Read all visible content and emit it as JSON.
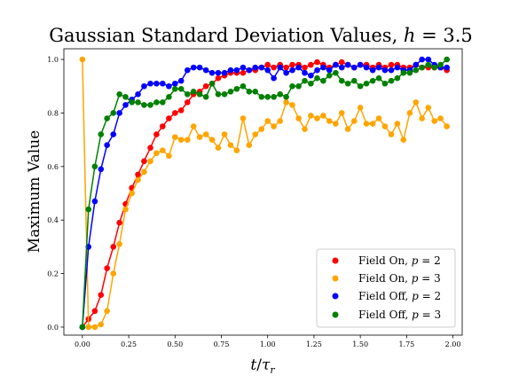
{
  "chart_data": {
    "type": "scatter",
    "title": "Gaussian Standard Deviation Values, h = 3.5",
    "title_main": "Gaussian Standard Deviation Values, ",
    "title_var": "h",
    "title_rest": " = 3.5",
    "xlabel": "t/τr",
    "xlabel_parts": [
      "t",
      "/",
      "τ",
      "r"
    ],
    "ylabel": "Maximum Value",
    "xlim": [
      -0.1,
      2.05
    ],
    "ylim": [
      -0.03,
      1.04
    ],
    "xticks": [
      0.0,
      0.25,
      0.5,
      0.75,
      1.0,
      1.25,
      1.5,
      1.75,
      2.0
    ],
    "xtick_labels": [
      "0.00",
      "0.25",
      "0.50",
      "0.75",
      "1.00",
      "1.25",
      "1.50",
      "1.75",
      "2.00"
    ],
    "yticks": [
      0.0,
      0.2,
      0.4,
      0.6,
      0.8,
      1.0
    ],
    "ytick_labels": [
      "0.0",
      "0.2",
      "0.4",
      "0.6",
      "0.8",
      "1.0"
    ],
    "grid": false,
    "legend_placement": "bottom-right",
    "series": [
      {
        "name": "Field On, p = 2",
        "legend_main": "Field On, ",
        "legend_var": "p",
        "legend_rest": " = 2",
        "color": "#ff0000",
        "x": [
          0.0,
          0.033,
          0.067,
          0.1,
          0.133,
          0.167,
          0.2,
          0.233,
          0.267,
          0.3,
          0.333,
          0.367,
          0.4,
          0.433,
          0.467,
          0.5,
          0.533,
          0.567,
          0.6,
          0.633,
          0.667,
          0.7,
          0.733,
          0.767,
          0.8,
          0.833,
          0.867,
          0.9,
          0.933,
          0.967,
          1.0,
          1.033,
          1.067,
          1.1,
          1.133,
          1.167,
          1.2,
          1.233,
          1.267,
          1.3,
          1.333,
          1.367,
          1.4,
          1.433,
          1.467,
          1.5,
          1.533,
          1.567,
          1.6,
          1.633,
          1.667,
          1.7,
          1.733,
          1.767,
          1.8,
          1.833,
          1.867,
          1.9,
          1.933,
          1.967
        ],
        "y": [
          0.0,
          0.03,
          0.06,
          0.12,
          0.22,
          0.3,
          0.39,
          0.46,
          0.52,
          0.57,
          0.62,
          0.67,
          0.72,
          0.75,
          0.78,
          0.8,
          0.81,
          0.84,
          0.87,
          0.88,
          0.9,
          0.91,
          0.93,
          0.94,
          0.95,
          0.95,
          0.95,
          0.96,
          0.96,
          0.97,
          0.98,
          0.97,
          0.98,
          0.97,
          0.98,
          0.98,
          0.97,
          0.98,
          0.99,
          0.98,
          0.97,
          0.98,
          0.99,
          0.98,
          0.97,
          0.98,
          0.98,
          0.97,
          0.98,
          0.97,
          0.98,
          0.98,
          0.97,
          0.97,
          0.98,
          0.97,
          0.97,
          0.97,
          0.97,
          0.96
        ]
      },
      {
        "name": "Field On, p = 3",
        "legend_main": "Field On, ",
        "legend_var": "p",
        "legend_rest": " = 3",
        "color": "#ffa500",
        "x": [
          0.0,
          0.033,
          0.067,
          0.1,
          0.133,
          0.167,
          0.2,
          0.233,
          0.267,
          0.3,
          0.333,
          0.367,
          0.4,
          0.433,
          0.467,
          0.5,
          0.533,
          0.567,
          0.6,
          0.633,
          0.667,
          0.7,
          0.733,
          0.767,
          0.8,
          0.833,
          0.867,
          0.9,
          0.933,
          0.967,
          1.0,
          1.033,
          1.067,
          1.1,
          1.133,
          1.167,
          1.2,
          1.233,
          1.267,
          1.3,
          1.333,
          1.367,
          1.4,
          1.433,
          1.467,
          1.5,
          1.533,
          1.567,
          1.6,
          1.633,
          1.667,
          1.7,
          1.733,
          1.767,
          1.8,
          1.833,
          1.867,
          1.9,
          1.933,
          1.967
        ],
        "y": [
          1.0,
          0.0,
          0.0,
          0.01,
          0.06,
          0.2,
          0.31,
          0.44,
          0.5,
          0.55,
          0.58,
          0.62,
          0.65,
          0.66,
          0.64,
          0.71,
          0.7,
          0.7,
          0.75,
          0.71,
          0.72,
          0.7,
          0.67,
          0.72,
          0.68,
          0.66,
          0.78,
          0.68,
          0.72,
          0.74,
          0.77,
          0.75,
          0.77,
          0.84,
          0.83,
          0.78,
          0.74,
          0.79,
          0.78,
          0.79,
          0.77,
          0.76,
          0.8,
          0.74,
          0.77,
          0.82,
          0.76,
          0.76,
          0.78,
          0.75,
          0.72,
          0.76,
          0.7,
          0.8,
          0.84,
          0.78,
          0.82,
          0.77,
          0.78,
          0.75
        ]
      },
      {
        "name": "Field Off, p = 2",
        "legend_main": "Field Off, ",
        "legend_var": "p",
        "legend_rest": " = 2",
        "color": "#0000ff",
        "x": [
          0.0,
          0.033,
          0.067,
          0.1,
          0.133,
          0.167,
          0.2,
          0.233,
          0.267,
          0.3,
          0.333,
          0.367,
          0.4,
          0.433,
          0.467,
          0.5,
          0.533,
          0.567,
          0.6,
          0.633,
          0.667,
          0.7,
          0.733,
          0.767,
          0.8,
          0.833,
          0.867,
          0.9,
          0.933,
          0.967,
          1.0,
          1.033,
          1.067,
          1.1,
          1.133,
          1.167,
          1.2,
          1.233,
          1.267,
          1.3,
          1.333,
          1.367,
          1.4,
          1.433,
          1.467,
          1.5,
          1.533,
          1.567,
          1.6,
          1.633,
          1.667,
          1.7,
          1.733,
          1.767,
          1.8,
          1.833,
          1.867,
          1.9,
          1.933,
          1.967
        ],
        "y": [
          0.0,
          0.3,
          0.47,
          0.59,
          0.68,
          0.72,
          0.8,
          0.83,
          0.85,
          0.87,
          0.9,
          0.91,
          0.91,
          0.91,
          0.9,
          0.91,
          0.92,
          0.96,
          0.97,
          0.97,
          0.96,
          0.95,
          0.95,
          0.95,
          0.96,
          0.96,
          0.97,
          0.96,
          0.97,
          0.97,
          0.96,
          0.93,
          0.97,
          0.95,
          0.96,
          0.97,
          0.95,
          0.94,
          0.96,
          0.97,
          0.96,
          0.98,
          0.97,
          0.98,
          0.97,
          0.98,
          0.97,
          0.96,
          0.97,
          0.96,
          0.96,
          0.97,
          0.96,
          0.96,
          0.98,
          1.0,
          1.0,
          0.98,
          0.97,
          0.97
        ]
      },
      {
        "name": "Field Off, p = 3",
        "legend_main": "Field Off, ",
        "legend_var": "p",
        "legend_rest": " = 3",
        "color": "#008000",
        "x": [
          0.0,
          0.033,
          0.067,
          0.1,
          0.133,
          0.167,
          0.2,
          0.233,
          0.267,
          0.3,
          0.333,
          0.367,
          0.4,
          0.433,
          0.467,
          0.5,
          0.533,
          0.567,
          0.6,
          0.633,
          0.667,
          0.7,
          0.733,
          0.767,
          0.8,
          0.833,
          0.867,
          0.9,
          0.933,
          0.967,
          1.0,
          1.033,
          1.067,
          1.1,
          1.133,
          1.167,
          1.2,
          1.233,
          1.267,
          1.3,
          1.333,
          1.367,
          1.4,
          1.433,
          1.467,
          1.5,
          1.533,
          1.567,
          1.6,
          1.633,
          1.667,
          1.7,
          1.733,
          1.767,
          1.8,
          1.833,
          1.867,
          1.9,
          1.933,
          1.967
        ],
        "y": [
          0.0,
          0.44,
          0.6,
          0.72,
          0.78,
          0.8,
          0.87,
          0.86,
          0.84,
          0.84,
          0.83,
          0.83,
          0.84,
          0.84,
          0.86,
          0.89,
          0.89,
          0.87,
          0.88,
          0.87,
          0.86,
          0.91,
          0.87,
          0.87,
          0.88,
          0.89,
          0.9,
          0.88,
          0.88,
          0.86,
          0.86,
          0.86,
          0.87,
          0.86,
          0.9,
          0.9,
          0.92,
          0.91,
          0.93,
          0.92,
          0.94,
          0.95,
          0.92,
          0.91,
          0.92,
          0.9,
          0.91,
          0.92,
          0.93,
          0.91,
          0.92,
          0.93,
          0.95,
          0.95,
          0.96,
          0.97,
          0.98,
          0.97,
          0.98,
          1.0
        ]
      }
    ]
  }
}
